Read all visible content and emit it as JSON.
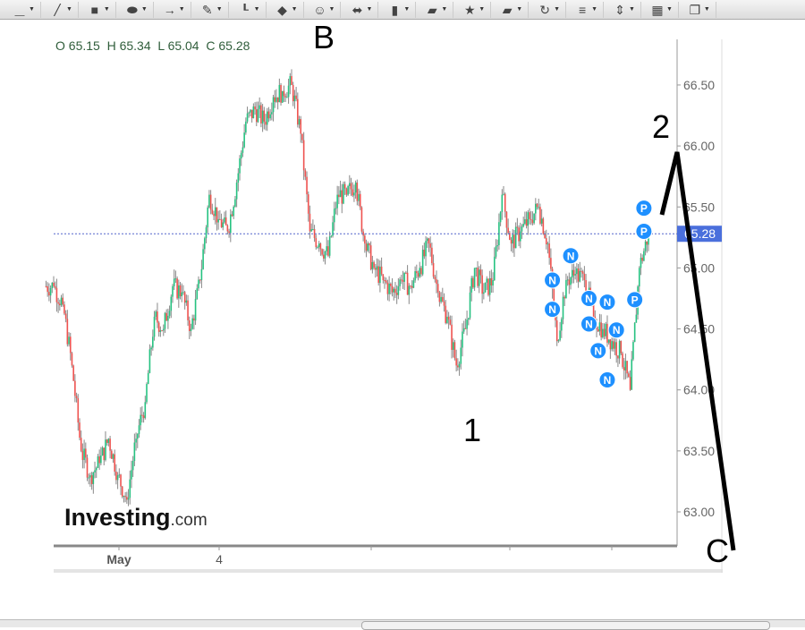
{
  "toolbar": {
    "icons": [
      "line-color-icon",
      "pen-line-icon",
      "rectangle-icon",
      "ellipse-icon",
      "arrow-icon",
      "pencil-icon",
      "path-icon",
      "diamond-icon",
      "smiley-icon",
      "double-arrow-icon",
      "column-icon",
      "callout-icon",
      "star-icon",
      "cube-icon",
      "clock-icon",
      "align-icon",
      "distribute-icon",
      "arrange-icon",
      "layers-icon"
    ]
  },
  "ohlc": {
    "text": "O 65.15  H 65.34  L 65.04  C 65.28"
  },
  "logo": {
    "main": "Investing",
    "suffix": ".com"
  },
  "annotations": {
    "B": "B",
    "one": "1",
    "two": "2",
    "C": "C"
  },
  "chart_data": {
    "type": "candlestick",
    "ylim": [
      62.8,
      66.85
    ],
    "yticks": [
      "63.00",
      "63.50",
      "64.00",
      "64.50",
      "65.00",
      "65.50",
      "66.00",
      "66.50"
    ],
    "xtick_labels": [
      "May",
      "4",
      "",
      "",
      ""
    ],
    "last_price": "65.28",
    "closes": [
      64.85,
      64.7,
      64.2,
      63.5,
      63.3,
      63.4,
      63.6,
      63.3,
      63.1,
      63.6,
      63.9,
      64.6,
      64.5,
      64.85,
      64.8,
      64.5,
      64.9,
      65.6,
      65.4,
      65.3,
      65.7,
      66.2,
      66.3,
      66.2,
      66.4,
      66.45,
      66.5,
      66.1,
      65.3,
      65.2,
      65.1,
      65.6,
      65.6,
      65.7,
      65.2,
      65.0,
      64.9,
      64.8,
      64.9,
      64.85,
      65.0,
      65.2,
      64.8,
      64.6,
      64.2,
      64.5,
      65.0,
      64.8,
      64.9,
      65.6,
      65.2,
      65.3,
      65.4,
      65.5,
      65.2,
      64.4,
      64.9,
      64.95,
      64.9,
      64.6,
      64.5,
      64.4,
      64.3,
      64.0,
      65.0,
      65.28
    ],
    "markers": [
      {
        "label": "N",
        "bar": 55,
        "price": 64.9
      },
      {
        "label": "N",
        "bar": 55,
        "price": 64.8
      },
      {
        "label": "N",
        "bar": 57,
        "price": 65.1
      },
      {
        "label": "N",
        "bar": 59,
        "price": 64.75
      },
      {
        "label": "N",
        "bar": 59,
        "price": 64.68
      },
      {
        "label": "N",
        "bar": 60,
        "price": 64.6
      },
      {
        "label": "N",
        "bar": 61,
        "price": 64.72
      },
      {
        "label": "N",
        "bar": 62,
        "price": 64.77
      },
      {
        "label": "N",
        "bar": 61,
        "price": 64.5
      },
      {
        "label": "P",
        "bar": 64,
        "price": 64.74
      },
      {
        "label": "P",
        "bar": 65,
        "price": 65.3
      },
      {
        "label": "P",
        "bar": 65,
        "price": 65.49
      }
    ],
    "colors": {
      "up": "#26c281",
      "down": "#ef5350",
      "wick": "#888888",
      "marker": "#1e90ff",
      "price_label": "#4a6fdc"
    }
  }
}
